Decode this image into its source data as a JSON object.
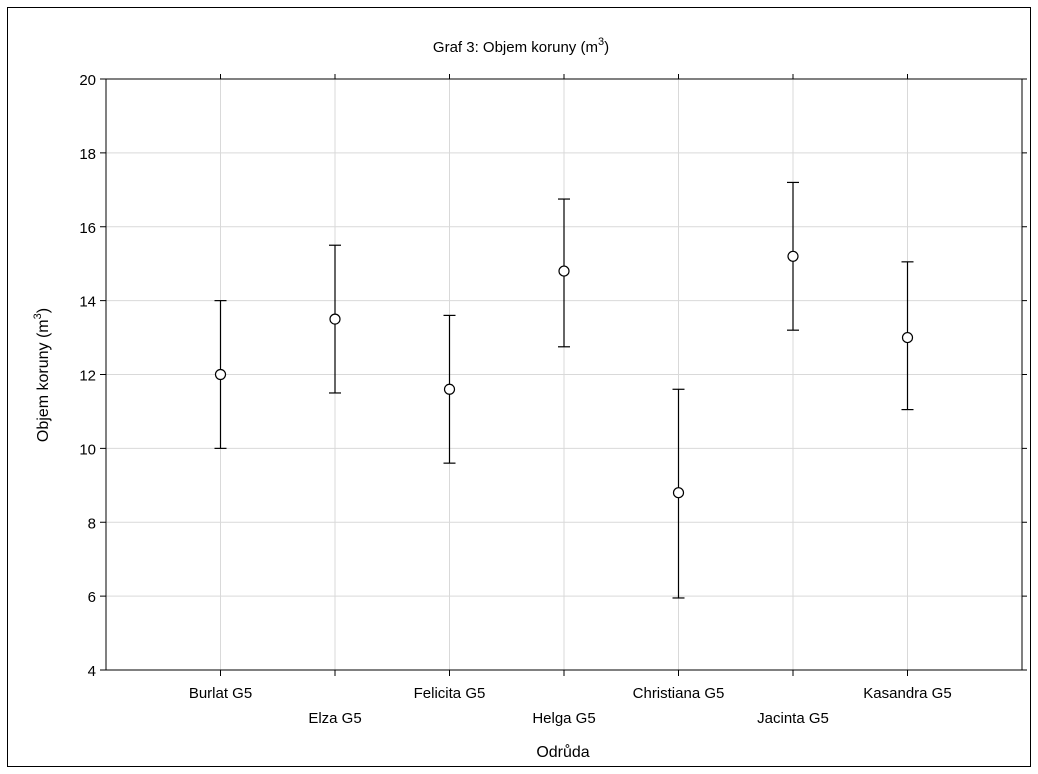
{
  "chart_data": {
    "type": "scatter",
    "title": "Graf 3: Objem koruny (m",
    "title_superscript": "3",
    "title_suffix": ")",
    "xlabel": "Odrůda",
    "ylabel": "Objem koruny (m",
    "ylabel_superscript": "3",
    "ylabel_suffix": ")",
    "ylim": [
      4,
      20
    ],
    "yticks": [
      4,
      6,
      8,
      10,
      12,
      14,
      16,
      18,
      20
    ],
    "grid": true,
    "categories": [
      "Burlat G5",
      "Elza G5",
      "Felicita G5",
      "Helga G5",
      "Christiana G5",
      "Jacinta G5",
      "Kasandra G5"
    ],
    "series": [
      {
        "mean": [
          12.0,
          13.5,
          11.6,
          14.8,
          8.8,
          15.2,
          13.0
        ],
        "lower": [
          10.0,
          11.5,
          9.6,
          12.75,
          5.95,
          13.2,
          11.05
        ],
        "upper": [
          14.0,
          15.5,
          13.6,
          16.75,
          11.6,
          17.2,
          15.05
        ]
      }
    ]
  }
}
